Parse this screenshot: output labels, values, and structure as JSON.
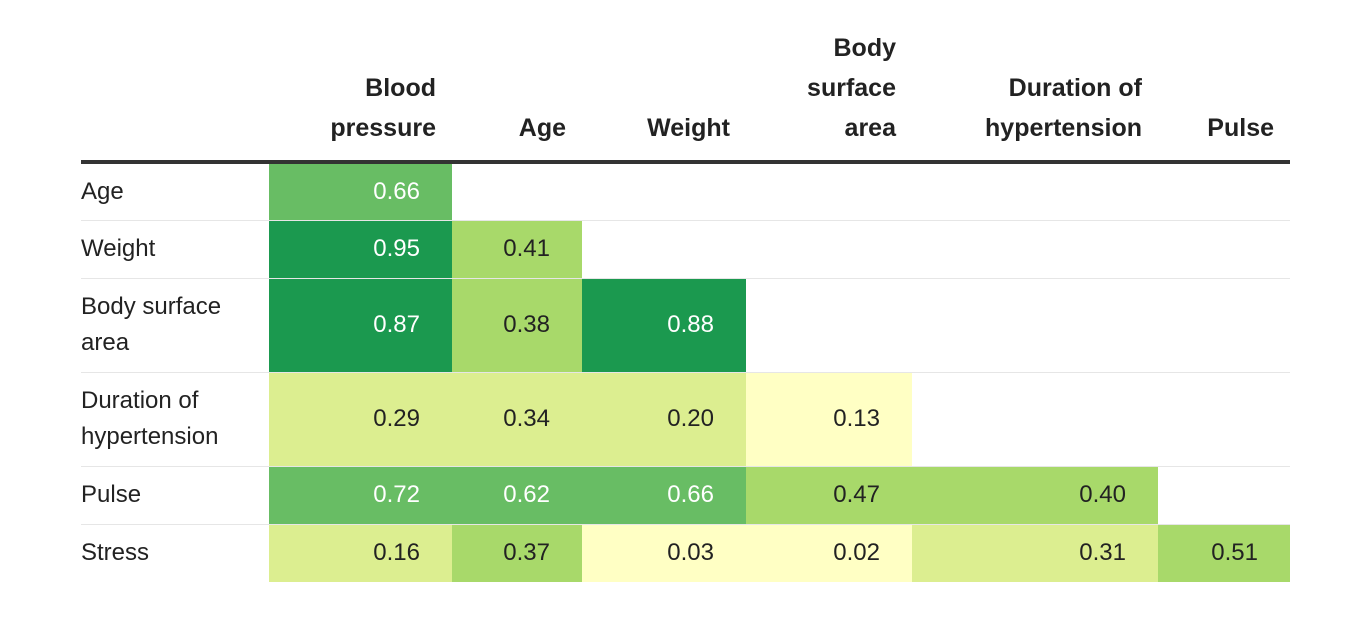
{
  "chart_data": {
    "type": "heatmap",
    "columns": [
      "Blood pressure",
      "Age",
      "Weight",
      "Body surface area",
      "Duration of hypertension",
      "Pulse"
    ],
    "rows": [
      {
        "label": "Age",
        "values": [
          0.66
        ]
      },
      {
        "label": "Weight",
        "values": [
          0.95,
          0.41
        ]
      },
      {
        "label": "Body surface area",
        "values": [
          0.87,
          0.38,
          0.88
        ]
      },
      {
        "label": "Duration of hypertension",
        "values": [
          0.29,
          0.34,
          0.2,
          0.13
        ]
      },
      {
        "label": "Pulse",
        "values": [
          0.72,
          0.62,
          0.66,
          0.47,
          0.4
        ]
      },
      {
        "label": "Stress",
        "values": [
          0.16,
          0.37,
          0.03,
          0.02,
          0.31,
          0.51
        ]
      }
    ],
    "value_format": "2 decimals",
    "color_scale": {
      "thresholds": [
        0.15,
        0.35,
        0.55,
        0.85
      ],
      "colors": [
        "#ffffc4",
        "#dcee90",
        "#a8d96a",
        "#68bd64",
        "#1b994f"
      ],
      "text_colors": [
        "#222222",
        "#222222",
        "#222222",
        "#ffffff",
        "#ffffff"
      ]
    },
    "grid_lines": true
  }
}
